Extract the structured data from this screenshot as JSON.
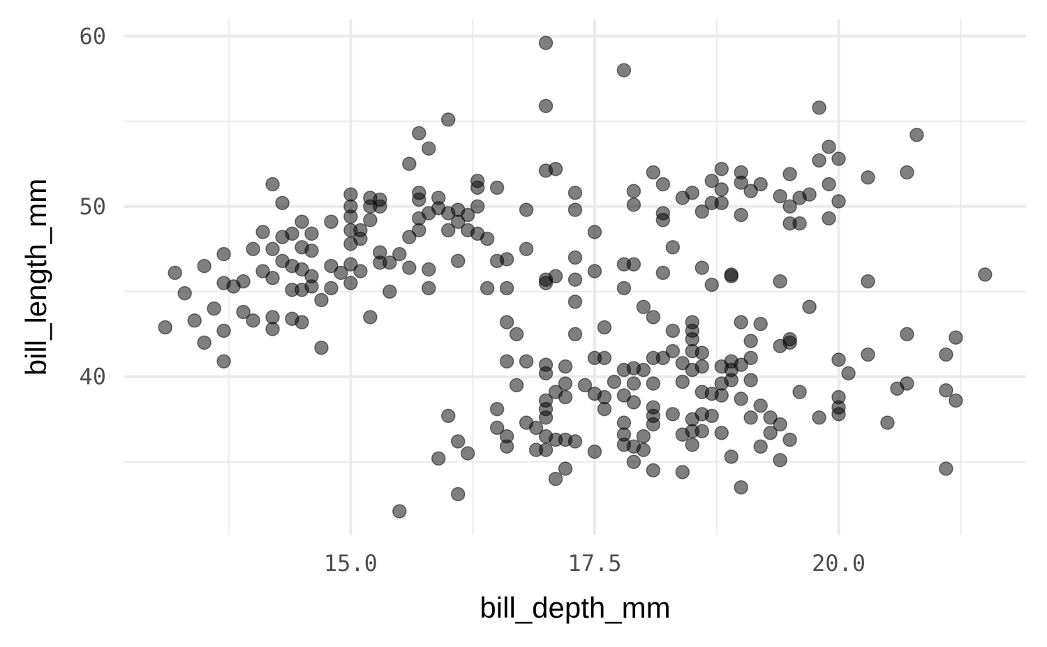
{
  "chart_data": {
    "type": "scatter",
    "x_label": "bill_depth_mm",
    "y_label": "bill_length_mm",
    "xlim": [
      12.68,
      21.92
    ],
    "ylim": [
      30.725,
      60.975
    ],
    "xticks": [
      {
        "value": 15,
        "label": "15.0"
      },
      17.5,
      {
        "value": 20,
        "label": "20.0"
      }
    ],
    "yticks": [
      40,
      50,
      60
    ],
    "xminor": [
      13.75,
      16.25,
      18.75,
      21.25
    ],
    "yminor": [
      35,
      45,
      55
    ],
    "grid": true,
    "color": "#000000",
    "opacity": 0.5,
    "x": [
      13.1,
      13.2,
      13.3,
      13.4,
      13.5,
      13.5,
      13.6,
      13.7,
      13.7,
      13.7,
      13.7,
      13.8,
      13.9,
      13.9,
      14.0,
      14.0,
      14.1,
      14.1,
      14.2,
      14.2,
      14.2,
      14.2,
      14.2,
      14.3,
      14.3,
      14.3,
      14.4,
      14.4,
      14.4,
      14.4,
      14.5,
      14.5,
      14.5,
      14.5,
      14.5,
      14.6,
      14.6,
      14.6,
      14.6,
      14.7,
      14.7,
      14.8,
      14.8,
      14.8,
      14.9,
      15.0,
      15.0,
      15.0,
      15.0,
      15.0,
      15.0,
      15.0,
      15.1,
      15.1,
      15.1,
      15.2,
      15.2,
      15.2,
      15.2,
      15.3,
      15.3,
      15.3,
      15.3,
      15.4,
      15.4,
      15.5,
      15.6,
      15.6,
      15.6,
      15.7,
      15.7,
      15.7,
      15.7,
      15.7,
      15.8,
      15.8,
      15.8,
      15.8,
      15.9,
      15.9,
      16.0,
      16.0,
      16.0,
      16.1,
      16.1,
      16.1,
      16.2,
      16.2,
      16.3,
      16.3,
      16.3,
      16.3,
      16.4,
      16.4,
      16.5,
      16.5,
      16.6,
      16.6,
      16.8,
      16.8,
      17.0,
      17.0,
      17.0,
      17.0,
      17.0,
      17.1,
      17.1,
      17.3,
      17.3,
      17.3,
      17.3,
      17.3,
      17.5,
      17.5,
      17.8,
      17.8,
      17.8,
      17.9,
      17.9,
      17.9,
      18.1,
      18.2,
      18.2,
      18.2,
      18.2,
      18.3,
      18.4,
      18.5,
      18.6,
      18.6,
      18.7,
      18.7,
      18.7,
      18.8,
      18.8,
      18.8,
      18.9,
      19.0,
      19.0,
      19.0,
      19.1,
      19.2,
      19.4,
      19.4,
      19.5,
      19.5,
      19.5,
      19.6,
      19.6,
      19.7,
      19.7,
      19.8,
      19.8,
      19.9,
      19.9,
      19.9,
      20.0,
      20.0,
      20.3,
      20.3,
      20.7,
      20.8,
      21.5,
      15.5,
      15.9,
      16.0,
      16.1,
      16.1,
      16.2,
      16.5,
      16.5,
      16.6,
      16.6,
      16.6,
      16.6,
      16.7,
      16.7,
      16.8,
      16.8,
      16.9,
      16.9,
      17.0,
      17.0,
      17.0,
      17.0,
      17.0,
      17.0,
      17.0,
      17.1,
      17.1,
      17.1,
      17.2,
      17.2,
      17.2,
      17.2,
      17.2,
      17.3,
      17.3,
      17.4,
      17.5,
      17.5,
      17.5,
      17.6,
      17.6,
      17.6,
      17.6,
      17.7,
      17.8,
      17.8,
      17.8,
      17.8,
      17.8,
      17.9,
      17.9,
      17.9,
      17.9,
      17.9,
      18.0,
      18.0,
      18.0,
      18.0,
      18.1,
      18.1,
      18.1,
      18.1,
      18.1,
      18.1,
      18.1,
      18.2,
      18.3,
      18.3,
      18.3,
      18.4,
      18.4,
      18.4,
      18.4,
      18.5,
      18.5,
      18.5,
      18.5,
      18.5,
      18.5,
      18.5,
      18.5,
      18.6,
      18.6,
      18.6,
      18.6,
      18.6,
      18.7,
      18.7,
      18.8,
      18.8,
      18.8,
      18.8,
      18.9,
      18.9,
      18.9,
      18.9,
      18.9,
      19.0,
      19.0,
      19.0,
      19.0,
      19.1,
      19.1,
      19.1,
      19.1,
      19.2,
      19.2,
      19.2,
      19.3,
      19.3,
      19.4,
      19.4,
      19.4,
      19.5,
      19.5,
      19.5,
      19.6,
      19.8,
      20.0,
      20.0,
      20.0,
      20.0,
      20.1,
      20.3,
      20.5,
      20.6,
      20.7,
      20.7,
      21.1,
      21.1,
      21.1,
      21.2,
      21.2
    ],
    "values": [
      42.9,
      46.1,
      44.9,
      43.3,
      46.5,
      42.0,
      44.0,
      47.2,
      45.5,
      42.7,
      40.9,
      45.3,
      45.6,
      43.8,
      47.5,
      43.3,
      48.5,
      46.2,
      51.3,
      47.5,
      45.8,
      43.5,
      42.8,
      50.2,
      48.2,
      46.8,
      48.4,
      46.5,
      45.1,
      43.4,
      49.1,
      47.6,
      46.3,
      45.1,
      43.2,
      48.4,
      47.4,
      45.9,
      45.3,
      44.5,
      41.7,
      49.1,
      46.5,
      45.2,
      46.1,
      50.7,
      50.0,
      49.4,
      48.6,
      47.8,
      46.6,
      45.5,
      48.6,
      48.1,
      46.2,
      50.5,
      50.0,
      49.2,
      43.5,
      50.4,
      50.0,
      47.3,
      46.7,
      46.7,
      45.0,
      47.2,
      52.5,
      48.2,
      46.4,
      54.3,
      50.8,
      50.4,
      49.3,
      48.6,
      53.4,
      49.6,
      46.3,
      45.2,
      50.5,
      49.9,
      55.1,
      49.6,
      48.6,
      49.8,
      49.1,
      46.8,
      49.5,
      48.6,
      51.5,
      51.1,
      50.0,
      48.4,
      48.1,
      45.2,
      51.1,
      46.8,
      46.9,
      45.2,
      49.8,
      47.5,
      59.6,
      55.9,
      52.1,
      45.7,
      45.5,
      52.2,
      45.9,
      50.8,
      49.8,
      47.0,
      45.7,
      44.4,
      48.5,
      46.2,
      58.0,
      46.6,
      45.2,
      46.6,
      50.9,
      50.1,
      52.0,
      51.3,
      49.6,
      49.2,
      46.1,
      47.6,
      50.5,
      50.8,
      49.7,
      46.4,
      51.5,
      50.2,
      45.4,
      52.2,
      51.0,
      50.2,
      46.0,
      52.0,
      51.4,
      49.5,
      50.9,
      51.3,
      50.6,
      45.6,
      51.9,
      50.0,
      49.0,
      50.5,
      49.0,
      50.7,
      44.1,
      55.8,
      52.7,
      53.5,
      51.3,
      49.3,
      52.8,
      50.3,
      51.7,
      45.6,
      52.0,
      54.2,
      46.0,
      32.1,
      35.2,
      37.7,
      36.2,
      33.1,
      35.5,
      38.1,
      37.0,
      43.2,
      40.9,
      36.5,
      35.9,
      42.5,
      39.5,
      40.9,
      37.3,
      37.0,
      35.7,
      40.7,
      40.2,
      38.6,
      38.1,
      37.6,
      36.5,
      35.7,
      39.1,
      36.3,
      34.0,
      40.6,
      39.6,
      38.8,
      36.3,
      34.6,
      42.5,
      36.2,
      39.5,
      41.1,
      39.0,
      35.6,
      42.9,
      41.1,
      38.8,
      38.1,
      39.7,
      40.4,
      38.9,
      37.3,
      36.6,
      36.0,
      40.5,
      39.6,
      38.5,
      35.9,
      35.0,
      44.1,
      40.4,
      36.5,
      35.7,
      43.5,
      41.1,
      39.6,
      38.2,
      37.7,
      37.2,
      34.5,
      41.1,
      42.7,
      41.5,
      37.8,
      40.8,
      39.7,
      36.6,
      34.4,
      43.2,
      42.7,
      42.2,
      41.5,
      40.4,
      37.5,
      36.8,
      36.0,
      41.4,
      40.6,
      39.1,
      37.8,
      36.8,
      39.0,
      37.7,
      40.6,
      39.6,
      38.9,
      36.7,
      45.9,
      40.9,
      40.4,
      39.8,
      35.3,
      43.2,
      40.7,
      38.7,
      33.5,
      42.1,
      41.1,
      39.8,
      37.6,
      43.1,
      38.3,
      35.9,
      37.6,
      36.7,
      41.8,
      37.2,
      35.1,
      42.2,
      42.0,
      36.3,
      39.1,
      37.6,
      41.0,
      38.8,
      38.2,
      37.8,
      40.2,
      41.3,
      37.3,
      39.3,
      42.5,
      39.6,
      41.3,
      39.2,
      34.6,
      42.3,
      38.6
    ]
  }
}
